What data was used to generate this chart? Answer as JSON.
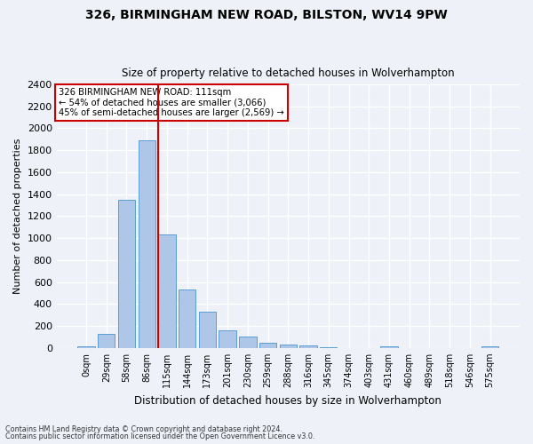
{
  "title1": "326, BIRMINGHAM NEW ROAD, BILSTON, WV14 9PW",
  "title2": "Size of property relative to detached houses in Wolverhampton",
  "xlabel": "Distribution of detached houses by size in Wolverhampton",
  "ylabel": "Number of detached properties",
  "bar_labels": [
    "0sqm",
    "29sqm",
    "58sqm",
    "86sqm",
    "115sqm",
    "144sqm",
    "173sqm",
    "201sqm",
    "230sqm",
    "259sqm",
    "288sqm",
    "316sqm",
    "345sqm",
    "374sqm",
    "403sqm",
    "431sqm",
    "460sqm",
    "489sqm",
    "518sqm",
    "546sqm",
    "575sqm"
  ],
  "bar_values": [
    15,
    130,
    1350,
    1890,
    1035,
    535,
    330,
    160,
    105,
    50,
    30,
    20,
    5,
    0,
    0,
    15,
    0,
    0,
    0,
    0,
    15
  ],
  "bar_color": "#aec6e8",
  "bar_edge_color": "#5a9ed4",
  "vline_x_index": 4,
  "vline_color": "#cc0000",
  "annotation_line1": "326 BIRMINGHAM NEW ROAD: 111sqm",
  "annotation_line2": "← 54% of detached houses are smaller (3,066)",
  "annotation_line3": "45% of semi-detached houses are larger (2,569) →",
  "annotation_box_color": "#ffffff",
  "annotation_box_edge": "#cc0000",
  "ylim": [
    0,
    2400
  ],
  "yticks": [
    0,
    200,
    400,
    600,
    800,
    1000,
    1200,
    1400,
    1600,
    1800,
    2000,
    2200,
    2400
  ],
  "footer1": "Contains HM Land Registry data © Crown copyright and database right 2024.",
  "footer2": "Contains public sector information licensed under the Open Government Licence v3.0.",
  "bg_color": "#eef2f8",
  "grid_color": "#ffffff"
}
